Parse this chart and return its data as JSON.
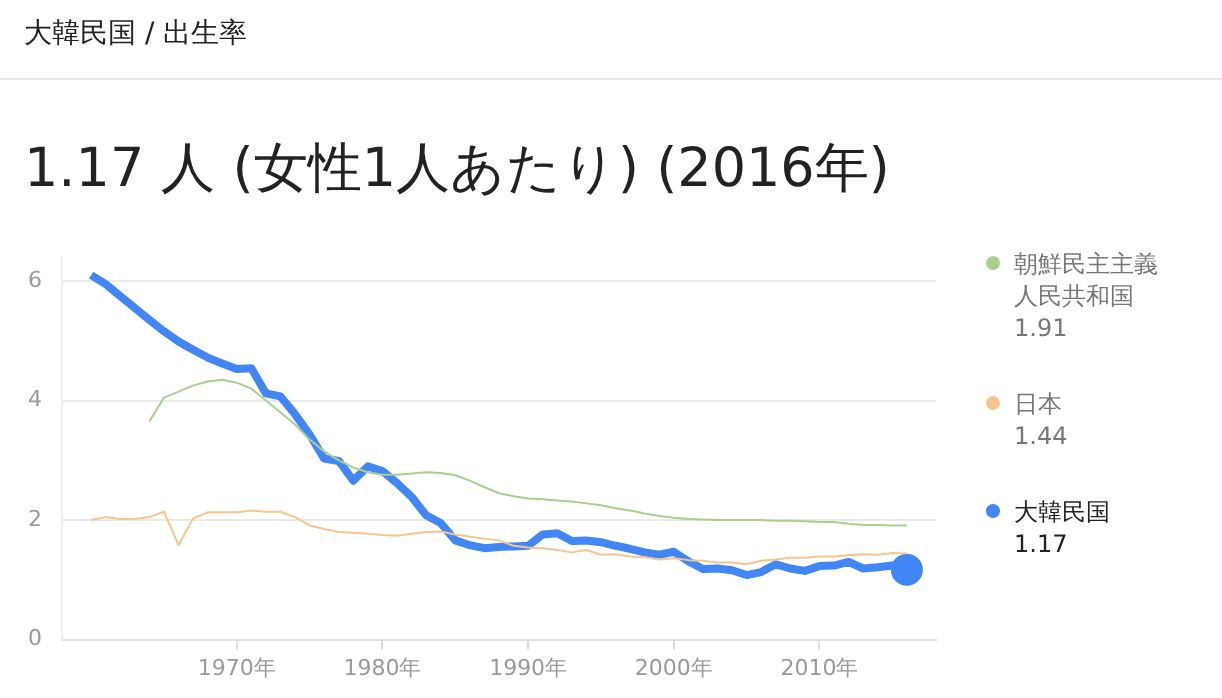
{
  "chart_data": {
    "type": "line",
    "subtitle": "大韓民国 / 出生率",
    "title": "1.17 人 (女性1人あたり) (2016年)",
    "x": [
      1960,
      1961,
      1962,
      1963,
      1964,
      1965,
      1966,
      1967,
      1968,
      1969,
      1970,
      1971,
      1972,
      1973,
      1974,
      1975,
      1976,
      1977,
      1978,
      1979,
      1980,
      1981,
      1982,
      1983,
      1984,
      1985,
      1986,
      1987,
      1988,
      1989,
      1990,
      1991,
      1992,
      1993,
      1994,
      1995,
      1996,
      1997,
      1998,
      1999,
      2000,
      2001,
      2002,
      2003,
      2004,
      2005,
      2006,
      2007,
      2008,
      2009,
      2010,
      2011,
      2012,
      2013,
      2014,
      2015,
      2016
    ],
    "series": [
      {
        "name": "朝鮮民主主義人民共和国",
        "color": "#a8d08d",
        "values": [
          null,
          null,
          null,
          null,
          3.65,
          4.05,
          4.15,
          4.25,
          4.32,
          4.35,
          4.3,
          4.2,
          4.0,
          3.8,
          3.6,
          3.35,
          3.15,
          3.0,
          2.88,
          2.8,
          2.76,
          2.76,
          2.78,
          2.8,
          2.79,
          2.75,
          2.66,
          2.55,
          2.45,
          2.4,
          2.36,
          2.35,
          2.33,
          2.31,
          2.28,
          2.25,
          2.2,
          2.16,
          2.11,
          2.07,
          2.04,
          2.02,
          2.01,
          2.0,
          2.0,
          2.0,
          2.0,
          1.99,
          1.99,
          1.98,
          1.97,
          1.97,
          1.94,
          1.92,
          1.92,
          1.91,
          1.91
        ]
      },
      {
        "name": "日本",
        "color": "#f6c48e",
        "values": [
          2.0,
          2.05,
          2.02,
          2.02,
          2.05,
          2.14,
          1.58,
          2.03,
          2.13,
          2.13,
          2.13,
          2.16,
          2.14,
          2.14,
          2.05,
          1.91,
          1.85,
          1.8,
          1.79,
          1.77,
          1.75,
          1.74,
          1.77,
          1.8,
          1.81,
          1.76,
          1.72,
          1.69,
          1.66,
          1.57,
          1.54,
          1.53,
          1.5,
          1.46,
          1.5,
          1.42,
          1.43,
          1.39,
          1.38,
          1.34,
          1.36,
          1.33,
          1.32,
          1.29,
          1.29,
          1.26,
          1.32,
          1.34,
          1.37,
          1.37,
          1.39,
          1.39,
          1.41,
          1.43,
          1.42,
          1.45,
          1.44
        ]
      },
      {
        "name": "大韓民国",
        "color": "#4285f4",
        "values": [
          6.1,
          5.95,
          5.75,
          5.55,
          5.35,
          5.16,
          4.99,
          4.85,
          4.72,
          4.62,
          4.53,
          4.54,
          4.12,
          4.07,
          3.77,
          3.43,
          3.03,
          2.99,
          2.66,
          2.9,
          2.82,
          2.62,
          2.39,
          2.08,
          1.95,
          1.66,
          1.58,
          1.53,
          1.55,
          1.56,
          1.57,
          1.76,
          1.78,
          1.65,
          1.66,
          1.63,
          1.57,
          1.52,
          1.46,
          1.42,
          1.47,
          1.31,
          1.18,
          1.19,
          1.16,
          1.08,
          1.13,
          1.26,
          1.19,
          1.15,
          1.23,
          1.24,
          1.3,
          1.19,
          1.21,
          1.24,
          1.17
        ]
      }
    ],
    "xlim": [
      1958,
      2018
    ],
    "xticks": [
      {
        "value": 1970,
        "label": "1970年"
      },
      {
        "value": 1980,
        "label": "1980年"
      },
      {
        "value": 1990,
        "label": "1990年"
      },
      {
        "value": 2000,
        "label": "2000年"
      },
      {
        "value": 2010,
        "label": "2010年"
      }
    ],
    "ylim": [
      0,
      6.4
    ],
    "yticks": [
      0,
      2,
      4,
      6
    ],
    "annotations": [
      "1.91",
      "1.44",
      "1.17"
    ],
    "grid": "y",
    "legend": "right",
    "marker": "none",
    "line_style": "solid"
  }
}
